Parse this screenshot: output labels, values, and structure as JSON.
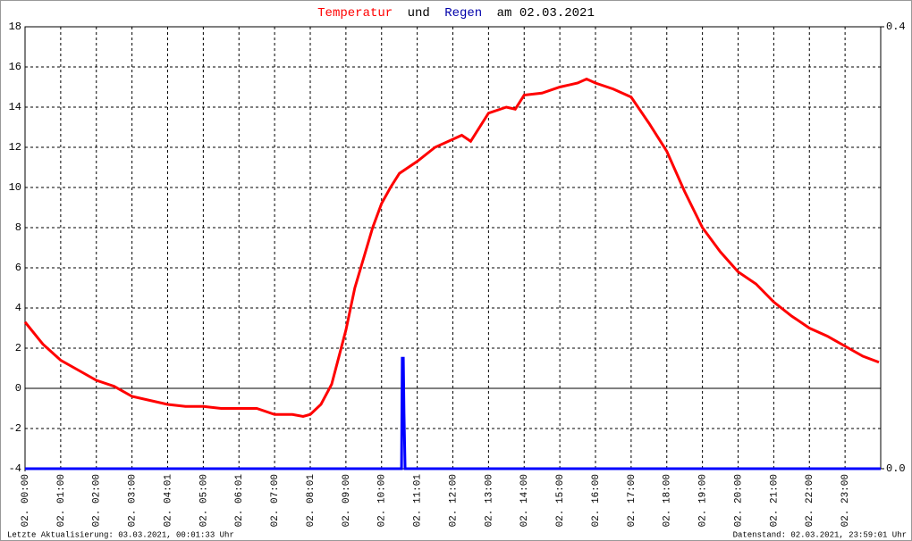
{
  "chart_data": {
    "type": "line",
    "title_parts": [
      "Temperatur",
      "und",
      "Regen",
      "am 02.03.2021"
    ],
    "footer_left": "Letzte Aktualisierung: 03.03.2021, 00:01:33 Uhr",
    "footer_right": "Datenstand: 02.03.2021, 23:59:01 Uhr",
    "xlim": [
      0,
      24
    ],
    "xticks": [
      {
        "value": 0,
        "label": "02. 00:00"
      },
      {
        "value": 1,
        "label": "02. 01:00"
      },
      {
        "value": 2,
        "label": "02. 02:00"
      },
      {
        "value": 3,
        "label": "02. 03:00"
      },
      {
        "value": 4,
        "label": "02. 04:01"
      },
      {
        "value": 5,
        "label": "02. 05:00"
      },
      {
        "value": 6,
        "label": "02. 06:01"
      },
      {
        "value": 7,
        "label": "02. 07:00"
      },
      {
        "value": 8,
        "label": "02. 08:01"
      },
      {
        "value": 9,
        "label": "02. 09:00"
      },
      {
        "value": 10,
        "label": "02. 10:00"
      },
      {
        "value": 11,
        "label": "02. 11:01"
      },
      {
        "value": 12,
        "label": "02. 12:00"
      },
      {
        "value": 13,
        "label": "02. 13:00"
      },
      {
        "value": 14,
        "label": "02. 14:00"
      },
      {
        "value": 15,
        "label": "02. 15:00"
      },
      {
        "value": 16,
        "label": "02. 16:00"
      },
      {
        "value": 17,
        "label": "02. 17:00"
      },
      {
        "value": 18,
        "label": "02. 18:00"
      },
      {
        "value": 19,
        "label": "02. 19:00"
      },
      {
        "value": 20,
        "label": "02. 20:00"
      },
      {
        "value": 21,
        "label": "02. 21:00"
      },
      {
        "value": 22,
        "label": "02. 22:00"
      },
      {
        "value": 23,
        "label": "02. 23:00"
      }
    ],
    "ylim": [
      -4,
      18
    ],
    "yticks": [
      -4,
      -2,
      0,
      2,
      4,
      6,
      8,
      10,
      12,
      14,
      16,
      18
    ],
    "y2lim": [
      0,
      0.4
    ],
    "y2ticks": [
      {
        "value": 0,
        "label": "0.0"
      },
      0.4
    ],
    "grid": true,
    "series": [
      {
        "name": "Temperatur",
        "color": "#ff0000",
        "x": [
          0,
          0.5,
          1,
          1.5,
          2,
          2.5,
          3,
          3.5,
          4,
          4.5,
          5,
          5.5,
          6,
          6.5,
          7,
          7.5,
          7.8,
          8,
          8.3,
          8.6,
          9,
          9.25,
          9.5,
          9.75,
          10,
          10.25,
          10.5,
          11,
          11.5,
          12,
          12.25,
          12.5,
          13,
          13.5,
          13.75,
          14,
          14.5,
          15,
          15.5,
          15.75,
          16,
          16.5,
          17,
          17.5,
          18,
          18.5,
          19,
          19.5,
          20,
          20.5,
          21,
          21.5,
          22,
          22.5,
          23,
          23.5,
          23.95
        ],
        "values": [
          3.3,
          2.2,
          1.4,
          0.9,
          0.4,
          0.1,
          -0.4,
          -0.6,
          -0.8,
          -0.9,
          -0.9,
          -1.0,
          -1.0,
          -1.0,
          -1.3,
          -1.3,
          -1.4,
          -1.3,
          -0.8,
          0.2,
          2.9,
          5.0,
          6.5,
          8.0,
          9.2,
          10.0,
          10.7,
          11.3,
          12.0,
          12.4,
          12.6,
          12.3,
          13.7,
          14.0,
          13.9,
          14.6,
          14.7,
          15.0,
          15.2,
          15.4,
          15.2,
          14.9,
          14.5,
          13.2,
          11.8,
          9.8,
          8.0,
          6.8,
          5.8,
          5.2,
          4.3,
          3.6,
          3.0,
          2.6,
          2.1,
          1.6,
          1.3
        ]
      },
      {
        "name": "Regen",
        "color": "#0000ff",
        "axis": "y2",
        "x": [
          0,
          10.56,
          10.58,
          10.61,
          10.63,
          10.66,
          24
        ],
        "values": [
          0,
          0,
          0.1,
          0.1,
          0.05,
          0,
          0
        ]
      }
    ]
  }
}
